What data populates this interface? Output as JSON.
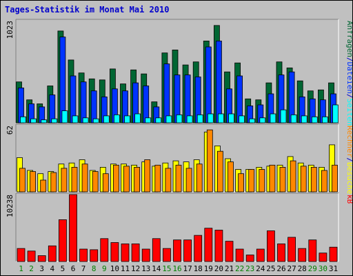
{
  "title": "Tages-Statistik im Monat Mai 2010",
  "chart_data": {
    "type": "bar",
    "title": "Tages-Statistik im Monat Mai 2010",
    "x": [
      1,
      2,
      3,
      4,
      5,
      6,
      7,
      8,
      9,
      10,
      11,
      12,
      13,
      14,
      15,
      16,
      17,
      18,
      19,
      20,
      21,
      22,
      23,
      24,
      25,
      26,
      27,
      28,
      29,
      30,
      31
    ],
    "weekend_days": [
      1,
      2,
      8,
      9,
      15,
      16,
      22,
      23,
      29,
      30
    ],
    "colors": {
      "weekday_label": "#000000",
      "weekend_label": "#008000",
      "title": "#0000cc",
      "anfragen": "#006633",
      "dateien": "#0033ff",
      "seiten": "#00ffff",
      "besuche": "#ffff00",
      "rechner": "#ff8800",
      "kb": "#ff0000"
    },
    "panels": [
      {
        "ymax_label": "1023",
        "ymax": 1023,
        "right_labels": [
          {
            "text": "Anfragen",
            "color_key": "anfragen"
          },
          {
            "text": "/",
            "color_key": "slash"
          },
          {
            "text": "Dateien",
            "color_key": "dateien"
          },
          {
            "text": "/",
            "color_key": "slash"
          },
          {
            "text": "Seiten",
            "color_key": "seiten"
          }
        ],
        "series": [
          {
            "name": "Anfragen",
            "color_key": "anfragen",
            "values": [
              410,
              230,
              190,
              370,
              920,
              630,
              500,
              440,
              430,
              540,
              390,
              530,
              490,
              210,
              700,
              730,
              580,
              610,
              820,
              975,
              510,
              600,
              240,
              230,
              400,
              610,
              550,
              420,
              320,
              330,
              400
            ]
          },
          {
            "name": "Dateien",
            "color_key": "dateien",
            "values": [
              350,
              190,
              160,
              280,
              860,
              470,
              410,
              320,
              260,
              340,
              320,
              400,
              370,
              160,
              590,
              480,
              480,
              460,
              760,
              820,
              340,
              470,
              170,
              180,
              290,
              480,
              510,
              260,
              240,
              230,
              290
            ]
          },
          {
            "name": "Seiten",
            "color_key": "seiten",
            "values": [
              60,
              40,
              30,
              40,
              120,
              70,
              50,
              40,
              70,
              80,
              70,
              90,
              50,
              50,
              70,
              80,
              70,
              80,
              90,
              90,
              90,
              70,
              40,
              50,
              90,
              130,
              80,
              70,
              60,
              60,
              180
            ]
          }
        ]
      },
      {
        "ymax_label": "62",
        "ymax": 62,
        "right_labels": [
          {
            "text": "Rechner",
            "color_key": "rechner"
          },
          {
            "text": "/",
            "color_key": "slash"
          },
          {
            "text": "Besuche",
            "color_key": "besuche"
          }
        ],
        "series": [
          {
            "name": "Besuche",
            "color_key": "besuche",
            "values": [
              32,
              20,
              17,
              19,
              26,
              27,
              30,
              20,
              23,
              26,
              26,
              25,
              28,
              24,
              27,
              29,
              28,
              30,
              56,
              43,
              31,
              21,
              21,
              23,
              24,
              25,
              33,
              27,
              25,
              23,
              44
            ]
          },
          {
            "name": "Rechner",
            "color_key": "rechner",
            "values": [
              22,
              19,
              11,
              18,
              22,
              23,
              26,
              19,
              17,
              25,
              24,
              23,
              30,
              25,
              22,
              25,
              22,
              26,
              58,
              38,
              28,
              17,
              21,
              21,
              25,
              23,
              29,
              24,
              23,
              20,
              25
            ]
          }
        ]
      },
      {
        "ymax_label": "10238",
        "ymax": 10238,
        "right_labels": [
          {
            "text": "kB",
            "color_key": "kb"
          }
        ],
        "series": [
          {
            "name": "kB",
            "color_key": "kb",
            "values": [
              2000,
              1600,
              900,
              2400,
              6400,
              10238,
              1900,
              1800,
              3500,
              2900,
              2700,
              2700,
              1900,
              3500,
              2000,
              3300,
              3300,
              4000,
              5100,
              4800,
              3100,
              1900,
              1000,
              1900,
              4700,
              2700,
              3700,
              2000,
              3300,
              1300,
              2200
            ]
          }
        ]
      }
    ]
  }
}
